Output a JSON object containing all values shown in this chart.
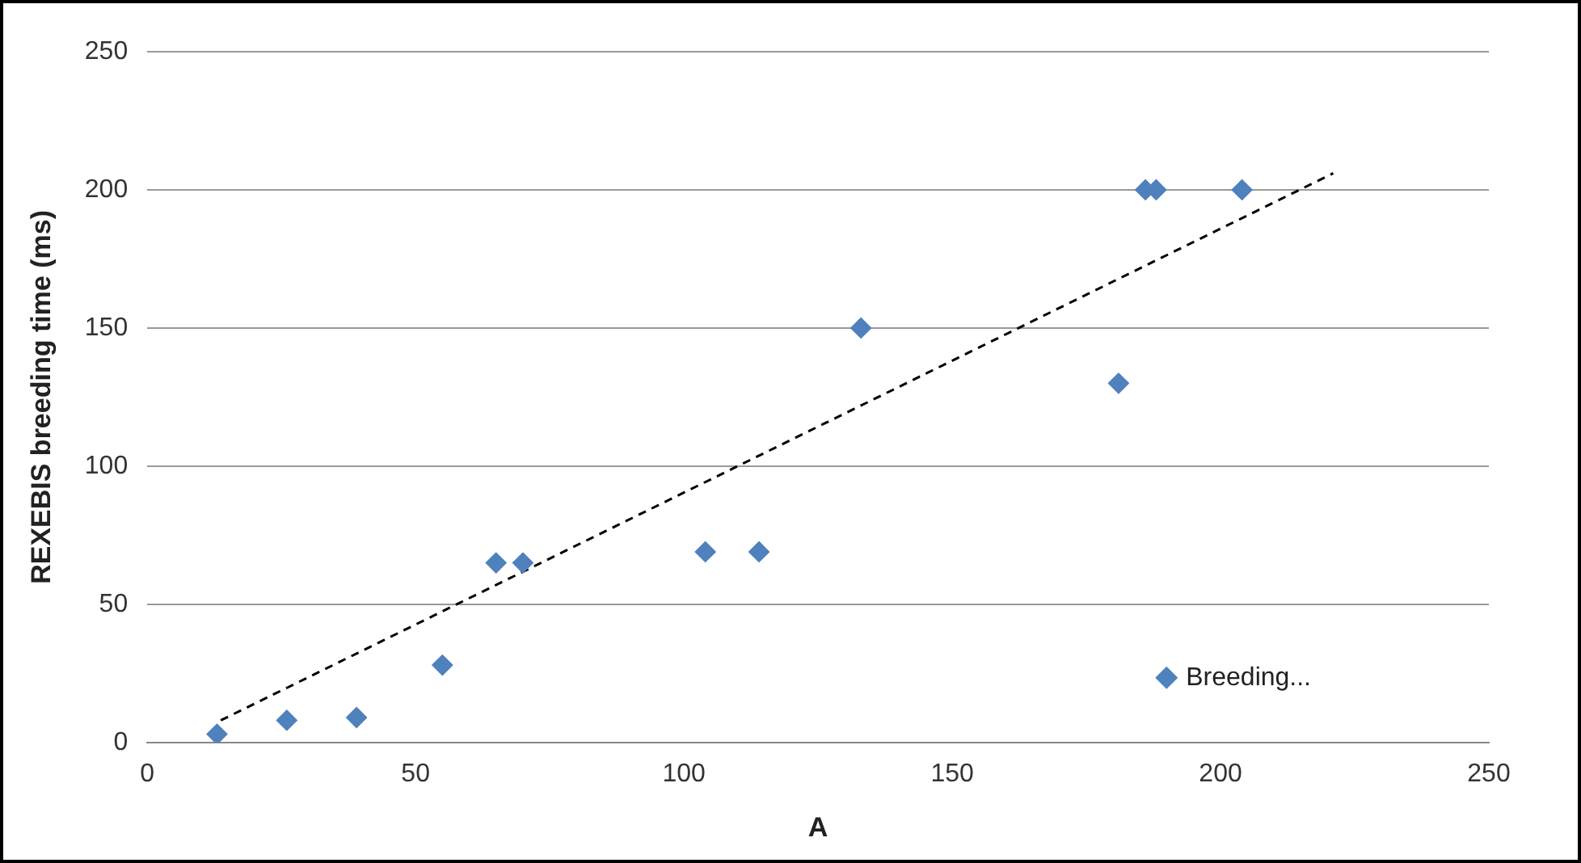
{
  "chart_data": {
    "type": "scatter",
    "xlabel": "A",
    "ylabel": "REXEBIS breeding time (ms)",
    "xlim": [
      0,
      250
    ],
    "xticks": [
      0,
      50,
      100,
      150,
      200,
      250
    ],
    "ylim": [
      0,
      250
    ],
    "yticks": [
      0,
      50,
      100,
      150,
      200,
      250
    ],
    "grid": "y",
    "legend": "bottom right",
    "series": [
      {
        "name": "Breeding...",
        "color": "#4f81bd",
        "marker": "diamond",
        "x": [
          13,
          26,
          39,
          55,
          65,
          70,
          104,
          114,
          133,
          181,
          186,
          188,
          204
        ],
        "values": [
          3,
          8,
          9,
          28,
          65,
          65,
          69,
          69,
          150,
          130,
          200,
          200,
          200
        ]
      },
      {
        "type": "line",
        "color": "#000000",
        "line_style": "dashed",
        "marker": "none",
        "x": [
          13.7,
          221
        ],
        "values": [
          8,
          206
        ]
      }
    ]
  }
}
